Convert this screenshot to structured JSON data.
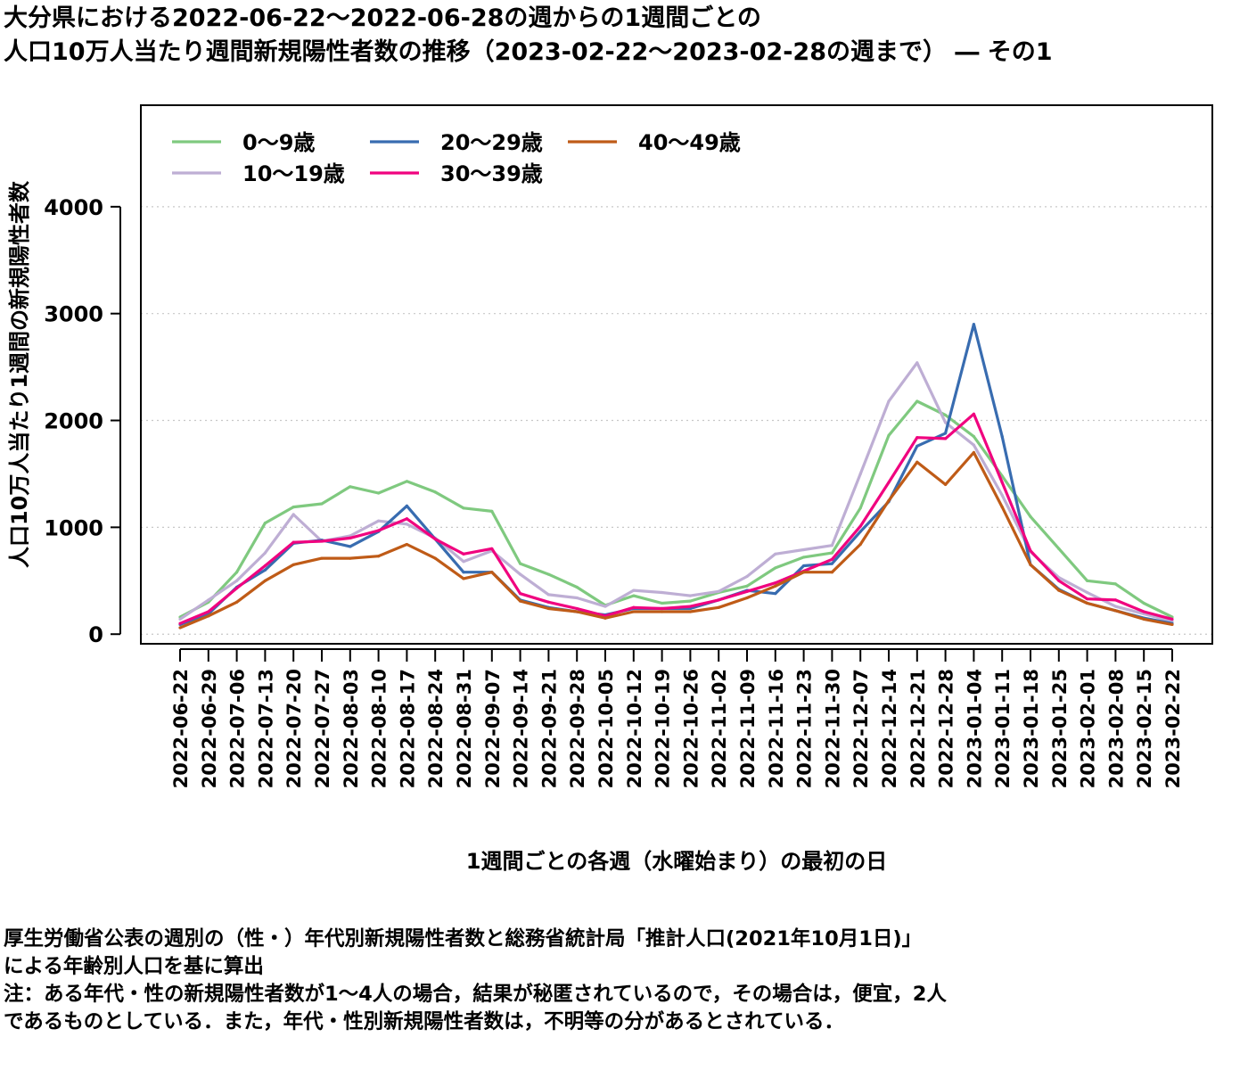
{
  "title": {
    "line1": "大分県における2022-06-22〜2022-06-28の週からの1週間ごとの",
    "line2": "人口10万人当たり週間新規陽性者数の推移（2023-02-22〜2023-02-28の週まで） ― その1"
  },
  "footnotes": {
    "line1": "厚生労働省公表の週別の（性・）年代別新規陽性者数と総務省統計局「推計人口(2021年10月1日)」",
    "line2": "による年齢別人口を基に算出",
    "line3": "注：ある年代・性の新規陽性者数が1〜4人の場合，結果が秘匿されているので，その場合は，便宜，2人",
    "line4": "であるものとしている．また，年代・性別新規陽性者数は，不明等の分があるとされている．"
  },
  "chart_data": {
    "type": "line",
    "xlabel": "1週間ごとの各週（水曜始まり）の最初の日",
    "ylabel": "人口10万人当たり1週間の新規陽性者数",
    "ylim": [
      -90,
      4950
    ],
    "yticks": [
      0,
      1000,
      2000,
      3000,
      4000
    ],
    "grid": "horizontal dotted",
    "legend_position": "top-left",
    "categories": [
      "2022-06-22",
      "2022-06-29",
      "2022-07-06",
      "2022-07-13",
      "2022-07-20",
      "2022-07-27",
      "2022-08-03",
      "2022-08-10",
      "2022-08-17",
      "2022-08-24",
      "2022-08-31",
      "2022-09-07",
      "2022-09-14",
      "2022-09-21",
      "2022-09-28",
      "2022-10-05",
      "2022-10-12",
      "2022-10-19",
      "2022-10-26",
      "2022-11-02",
      "2022-11-09",
      "2022-11-16",
      "2022-11-23",
      "2022-11-30",
      "2022-12-07",
      "2022-12-14",
      "2022-12-21",
      "2022-12-28",
      "2023-01-04",
      "2023-01-11",
      "2023-01-18",
      "2023-01-25",
      "2023-02-01",
      "2023-02-08",
      "2023-02-15",
      "2023-02-22"
    ],
    "series": [
      {
        "name": "0〜9歳",
        "color": "#7fc97f",
        "values": [
          160,
          300,
          580,
          1040,
          1190,
          1220,
          1380,
          1320,
          1430,
          1330,
          1180,
          1150,
          660,
          560,
          440,
          270,
          360,
          290,
          310,
          390,
          450,
          620,
          720,
          760,
          1180,
          1860,
          2180,
          2050,
          1850,
          1480,
          1100,
          800,
          500,
          470,
          290,
          160
        ]
      },
      {
        "name": "10〜19歳",
        "color": "#beaed4",
        "values": [
          140,
          320,
          500,
          760,
          1120,
          870,
          920,
          1060,
          1030,
          900,
          680,
          780,
          560,
          370,
          340,
          260,
          410,
          390,
          360,
          400,
          540,
          750,
          790,
          830,
          1500,
          2180,
          2540,
          1980,
          1770,
          1300,
          770,
          530,
          390,
          260,
          190,
          120
        ]
      },
      {
        "name": "20〜29歳",
        "color": "#386cb0",
        "values": [
          90,
          190,
          440,
          600,
          850,
          880,
          820,
          960,
          1200,
          890,
          580,
          580,
          320,
          250,
          210,
          180,
          240,
          240,
          240,
          320,
          410,
          380,
          640,
          660,
          960,
          1240,
          1760,
          1880,
          2900,
          1850,
          650,
          420,
          290,
          220,
          150,
          100
        ]
      },
      {
        "name": "30〜39歳",
        "color": "#f0027f",
        "values": [
          100,
          210,
          430,
          640,
          860,
          870,
          900,
          970,
          1080,
          890,
          750,
          800,
          380,
          300,
          240,
          170,
          250,
          240,
          260,
          320,
          400,
          480,
          590,
          700,
          1010,
          1420,
          1840,
          1830,
          2060,
          1420,
          780,
          500,
          330,
          320,
          210,
          140
        ]
      },
      {
        "name": "40〜49歳",
        "color": "#bf5b17",
        "values": [
          60,
          170,
          300,
          500,
          650,
          710,
          710,
          730,
          840,
          710,
          520,
          580,
          310,
          240,
          210,
          150,
          210,
          210,
          210,
          250,
          340,
          450,
          580,
          580,
          840,
          1250,
          1610,
          1400,
          1700,
          1190,
          650,
          410,
          290,
          220,
          140,
          90
        ]
      }
    ]
  }
}
